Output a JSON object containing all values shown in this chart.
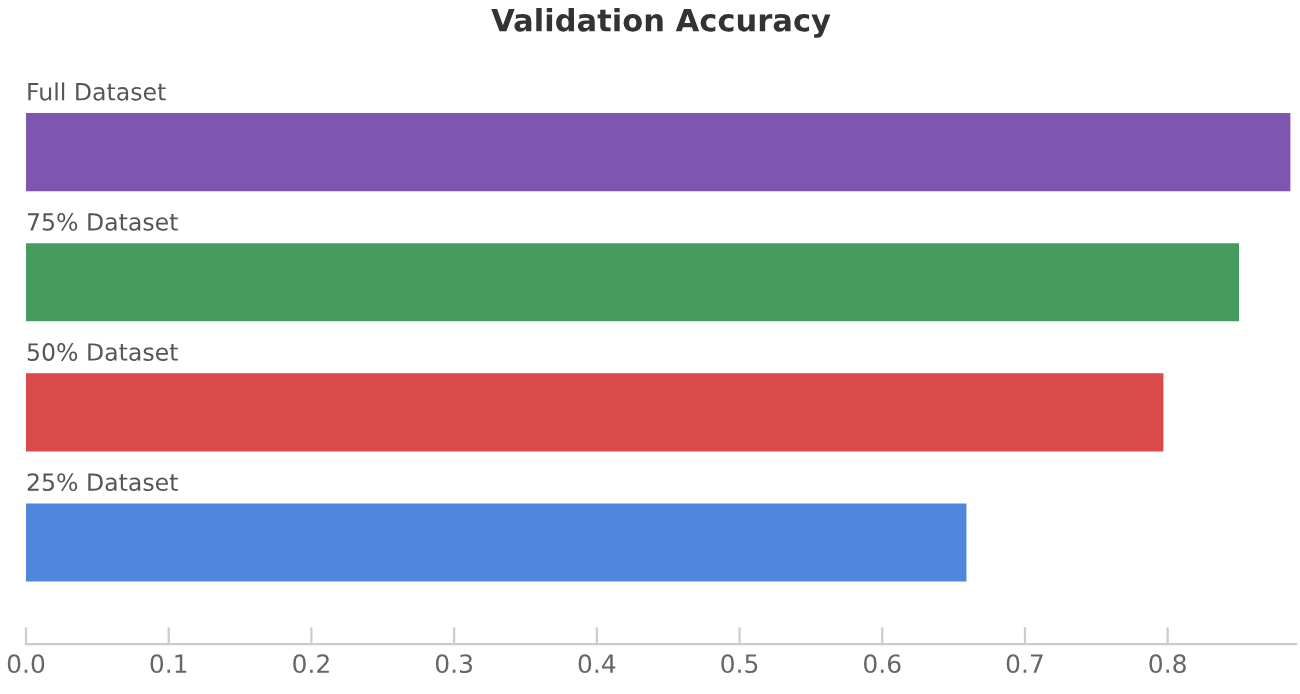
{
  "chart_data": {
    "type": "bar",
    "orientation": "horizontal",
    "title": "Validation Accuracy",
    "categories": [
      "Full Dataset",
      "75% Dataset",
      "50% Dataset",
      "25% Dataset"
    ],
    "values": [
      0.886,
      0.85,
      0.797,
      0.659
    ],
    "colors": [
      "#7e55b0",
      "#469c5f",
      "#da4a4a",
      "#5087dc"
    ],
    "xlim": [
      0,
      0.89
    ],
    "xticks": [
      {
        "value": 0,
        "label": "0.0"
      },
      0.1,
      0.2,
      0.3,
      0.4,
      0.5,
      0.6,
      0.7,
      0.8
    ],
    "grid": false,
    "legend": false
  }
}
